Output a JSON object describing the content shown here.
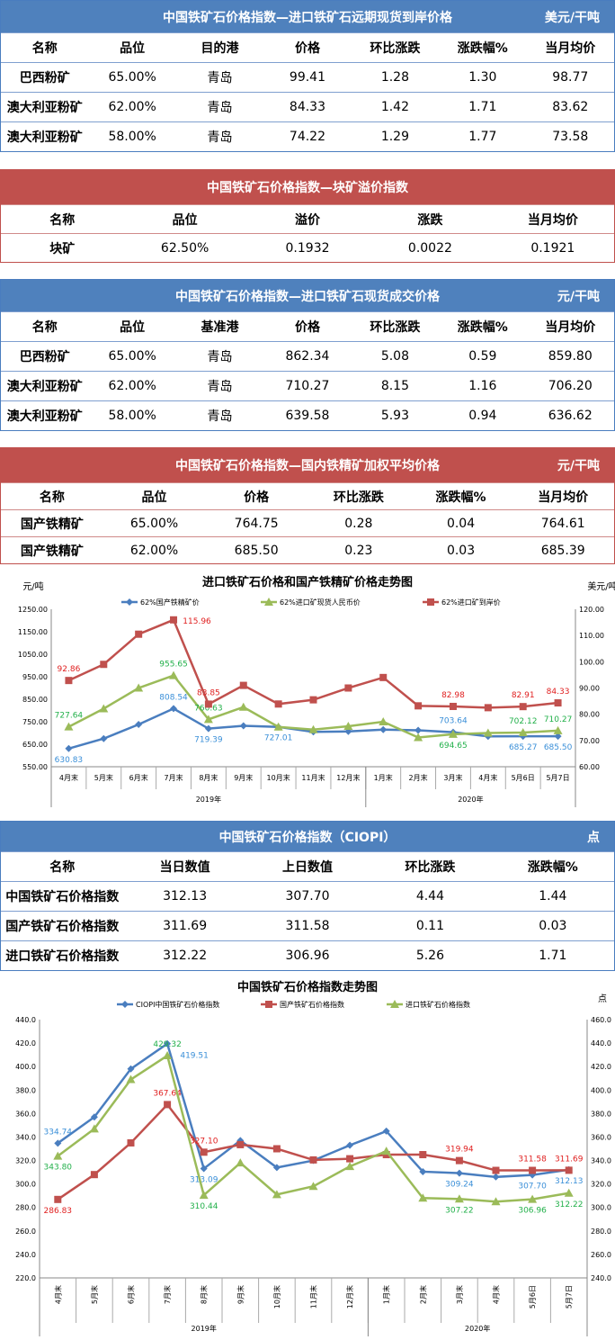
{
  "tables": [
    {
      "title": "中国铁矿石价格指数—进口铁矿石远期现货到岸价格",
      "unit": "美元/干吨",
      "color": "blue",
      "columns": [
        "名称",
        "品位",
        "目的港",
        "价格",
        "环比涨跌",
        "涨跌幅%",
        "当月均价"
      ],
      "rows": [
        [
          "巴西粉矿",
          "65.00%",
          "青岛",
          "99.41",
          "1.28",
          "1.30",
          "98.77"
        ],
        [
          "澳大利亚粉矿",
          "62.00%",
          "青岛",
          "84.33",
          "1.42",
          "1.71",
          "83.62"
        ],
        [
          "澳大利亚粉矿",
          "58.00%",
          "青岛",
          "74.22",
          "1.29",
          "1.77",
          "73.58"
        ]
      ]
    },
    {
      "title": "中国铁矿石价格指数—块矿溢价指数",
      "unit": "",
      "color": "red",
      "columns": [
        "名称",
        "品位",
        "溢价",
        "涨跌",
        "当月均价"
      ],
      "rows": [
        [
          "块矿",
          "62.50%",
          "0.1932",
          "0.0022",
          "0.1921"
        ]
      ]
    },
    {
      "title": "中国铁矿石价格指数—进口铁矿石现货成交价格",
      "unit": "元/干吨",
      "color": "blue",
      "columns": [
        "名称",
        "品位",
        "基准港",
        "价格",
        "环比涨跌",
        "涨跌幅%",
        "当月均价"
      ],
      "rows": [
        [
          "巴西粉矿",
          "65.00%",
          "青岛",
          "862.34",
          "5.08",
          "0.59",
          "859.80"
        ],
        [
          "澳大利亚粉矿",
          "62.00%",
          "青岛",
          "710.27",
          "8.15",
          "1.16",
          "706.20"
        ],
        [
          "澳大利亚粉矿",
          "58.00%",
          "青岛",
          "639.58",
          "5.93",
          "0.94",
          "636.62"
        ]
      ]
    },
    {
      "title": "中国铁矿石价格指数—国内铁精矿加权平均价格",
      "unit": "元/干吨",
      "color": "red",
      "columns": [
        "名称",
        "品位",
        "价格",
        "环比涨跌",
        "涨跌幅%",
        "当月均价"
      ],
      "rows": [
        [
          "国产铁精矿",
          "65.00%",
          "764.75",
          "0.28",
          "0.04",
          "764.61"
        ],
        [
          "国产铁精矿",
          "62.00%",
          "685.50",
          "0.23",
          "0.03",
          "685.39"
        ]
      ]
    },
    {
      "title": "中国铁矿石价格指数（CIOPI）",
      "unit": "点",
      "color": "blue",
      "columns": [
        "名称",
        "当日数值",
        "上日数值",
        "环比涨跌",
        "涨跌幅%"
      ],
      "rows": [
        [
          "中国铁矿石价格指数",
          "312.13",
          "307.70",
          "4.44",
          "1.44"
        ],
        [
          "国产铁矿石价格指数",
          "311.69",
          "311.58",
          "0.11",
          "0.03"
        ],
        [
          "进口铁矿石价格指数",
          "312.22",
          "306.96",
          "5.26",
          "1.71"
        ]
      ]
    }
  ],
  "chart_data": [
    {
      "type": "line",
      "title": "进口铁矿石价格和国产铁精矿价格走势图",
      "ylabel": "元/吨",
      "y2label": "美元/吨",
      "categories": [
        "4月末",
        "5月末",
        "6月末",
        "7月末",
        "8月末",
        "9月末",
        "10月末",
        "11月末",
        "12月末",
        "1月末",
        "2月末",
        "3月末",
        "4月末",
        "5月6日",
        "5月7日"
      ],
      "groups": [
        {
          "label": "2019年",
          "count": 9
        },
        {
          "label": "2020年",
          "count": 6
        }
      ],
      "ylim": [
        550,
        1250
      ],
      "yticks": [
        "550.00",
        "650.00",
        "750.00",
        "850.00",
        "950.00",
        "1050.00",
        "1150.00",
        "1250.00"
      ],
      "y2lim": [
        60,
        120
      ],
      "y2ticks": [
        "60.00",
        "70.00",
        "80.00",
        "90.00",
        "100.00",
        "110.00",
        "120.00"
      ],
      "series": [
        {
          "name": "62%国产铁精矿价",
          "color": "#4a7ebf",
          "axis": "left",
          "marker": "diamond",
          "values": [
            630.83,
            675,
            738,
            808.54,
            719.39,
            732,
            727.01,
            705,
            707,
            715,
            712,
            703.64,
            685,
            685.27,
            685.5
          ],
          "labels": {
            "0": "630.83",
            "3": "808.54",
            "4": "719.39",
            "6": "727.01",
            "11": "703.64",
            "13": "685.27",
            "14": "685.50"
          }
        },
        {
          "name": "62%进口矿现货人民币价",
          "color": "#9bbb59",
          "axis": "left",
          "marker": "triangle",
          "values": [
            727.64,
            808,
            900,
            955.65,
            760.63,
            815,
            727,
            715,
            730,
            750,
            680,
            694.65,
            700,
            702.12,
            710.27
          ],
          "labels": {
            "0": "727.64",
            "3": "955.65",
            "4": "760.63",
            "11": "694.65",
            "13": "702.12",
            "14": "710.27"
          }
        },
        {
          "name": "62%进口矿到岸价",
          "color": "#c0504d",
          "axis": "right",
          "marker": "square",
          "values": [
            92.86,
            99,
            110.5,
            115.96,
            83.85,
            91,
            83.9,
            85.5,
            90,
            94,
            83.2,
            82.98,
            82.5,
            82.91,
            84.33
          ],
          "labels": {
            "0": "92.86",
            "3": "115.96",
            "4": "83.85",
            "11": "82.98",
            "13": "82.91",
            "14": "84.33"
          }
        }
      ]
    },
    {
      "type": "line",
      "title": "中国铁矿石价格指数走势图",
      "y2label": "点",
      "categories": [
        "4月末",
        "5月末",
        "6月末",
        "7月末",
        "8月末",
        "9月末",
        "10月末",
        "11月末",
        "12月末",
        "1月末",
        "2月末",
        "3月末",
        "4月末",
        "5月6日",
        "5月7日"
      ],
      "groups": [
        {
          "label": "2019年",
          "count": 9
        },
        {
          "label": "2020年",
          "count": 6
        }
      ],
      "ylim": [
        220,
        440
      ],
      "yticks": [
        "220.0",
        "240.0",
        "260.0",
        "280.0",
        "300.0",
        "320.0",
        "340.0",
        "360.0",
        "380.0",
        "400.0",
        "420.0",
        "440.0"
      ],
      "y2lim": [
        240,
        460
      ],
      "y2ticks": [
        "240.0",
        "260.0",
        "280.0",
        "300.0",
        "320.0",
        "340.0",
        "360.0",
        "380.0",
        "400.0",
        "420.0",
        "440.0",
        "460.0"
      ],
      "series": [
        {
          "name": "CIOPI中国铁矿石价格指数",
          "color": "#4a7ebf",
          "axis": "left",
          "marker": "diamond",
          "values": [
            334.74,
            357,
            398,
            419.51,
            313.09,
            337,
            314,
            320,
            333,
            345,
            310.5,
            309.24,
            306,
            307.7,
            312.13
          ],
          "labels": {
            "0": "334.74",
            "3": "419.51",
            "4": "313.09",
            "11": "309.24",
            "13": "307.70",
            "14": "312.13"
          }
        },
        {
          "name": "国产铁矿石价格指数",
          "color": "#c0504d",
          "axis": "left",
          "marker": "square",
          "values": [
            286.83,
            308,
            335,
            367.64,
            327.1,
            333.5,
            330,
            320.5,
            321.5,
            325,
            325,
            319.94,
            311.58,
            311.58,
            311.69
          ],
          "labels": {
            "0": "286.83",
            "3": "367.64",
            "4": "327.10",
            "11": "319.94",
            "13": "311.58",
            "14": "311.69"
          }
        },
        {
          "name": "进口铁矿石价格指数",
          "color": "#9bbb59",
          "axis": "right",
          "marker": "triangle",
          "values": [
            343.8,
            367,
            409,
            429.32,
            310.44,
            338,
            311,
            318,
            335,
            348,
            308,
            307.22,
            305,
            306.96,
            312.22
          ],
          "labels": {
            "0": "343.80",
            "3": "429.32",
            "4": "310.44",
            "11": "307.22",
            "13": "306.96",
            "14": "312.22"
          }
        }
      ]
    }
  ]
}
